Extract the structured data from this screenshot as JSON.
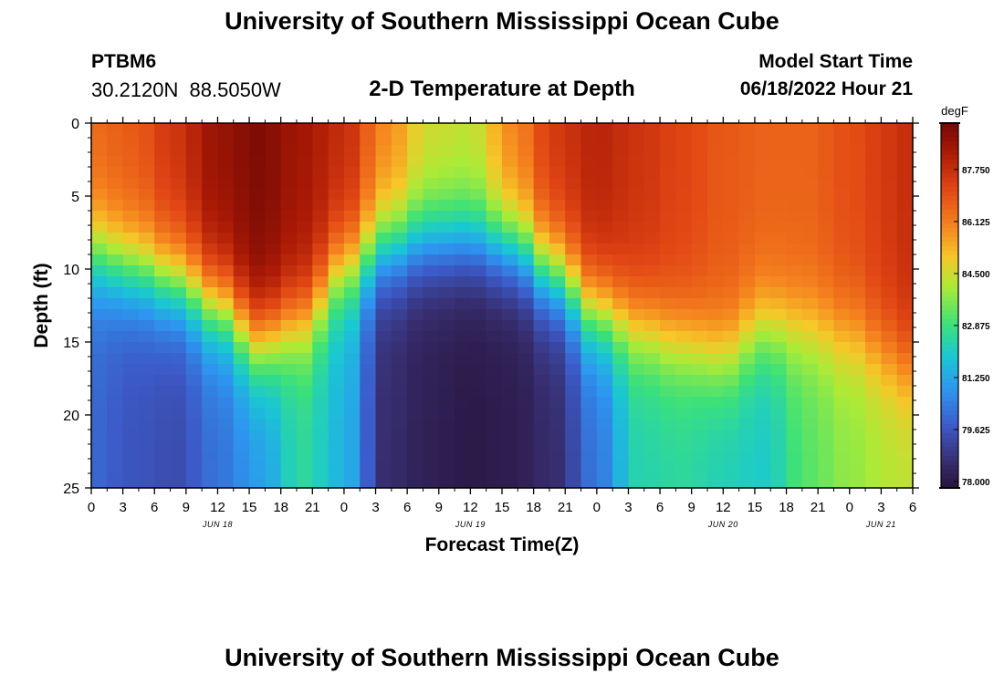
{
  "header": {
    "title": "University of Southern Mississippi Ocean Cube",
    "station": "PTBM6",
    "coordinates": "30.2120N  88.5050W",
    "subtitle": "2-D Temperature at Depth",
    "start_label": "Model Start Time",
    "start_value": "06/18/2022 Hour 21"
  },
  "footer": {
    "title": "University of Southern Mississippi Ocean Cube"
  },
  "chart_data": {
    "type": "heatmap",
    "title": "2-D Temperature at Depth",
    "xlabel": "Forecast Time(Z)",
    "ylabel": "Depth (ft)",
    "x_unit": "hours",
    "xlim": [
      0,
      78
    ],
    "ylim": [
      25,
      0
    ],
    "x_ticks": [
      0,
      3,
      6,
      9,
      12,
      15,
      18,
      21,
      24,
      27,
      30,
      33,
      36,
      39,
      42,
      45,
      48,
      51,
      54,
      57,
      60,
      63,
      66,
      69,
      72,
      75,
      78
    ],
    "x_tick_labels": [
      "0",
      "3",
      "6",
      "9",
      "12",
      "15",
      "18",
      "21",
      "0",
      "3",
      "6",
      "9",
      "12",
      "15",
      "18",
      "21",
      "0",
      "3",
      "6",
      "9",
      "12",
      "15",
      "18",
      "21",
      "0",
      "3",
      "6"
    ],
    "day_labels": [
      {
        "hour": 12,
        "label": "JUN 18"
      },
      {
        "hour": 36,
        "label": "JUN 19"
      },
      {
        "hour": 60,
        "label": "JUN 20"
      },
      {
        "hour": 75,
        "label": "JUN 21"
      }
    ],
    "y_ticks": [
      0,
      5,
      10,
      15,
      20,
      25
    ],
    "y_tick_labels": [
      "0",
      "5",
      "10",
      "15",
      "20",
      "25"
    ],
    "colorbar": {
      "unit": "degF",
      "min": 77.8,
      "max": 89.2,
      "ticks": [
        78.0,
        79.625,
        81.25,
        82.875,
        84.5,
        86.125,
        87.75
      ],
      "tick_labels": [
        "78.000",
        "79.625",
        "81.250",
        "82.875",
        "84.500",
        "86.125",
        "87.750"
      ]
    },
    "grid_spacing": {
      "hours": 1.5,
      "depth_ft": 0.75
    },
    "surface_temp_degF": {
      "hours": [
        0,
        4,
        8,
        12,
        16,
        20,
        24,
        28,
        32,
        36,
        40,
        44,
        48,
        52,
        56,
        60,
        64,
        68,
        72,
        76,
        78
      ],
      "values": [
        86.5,
        86.8,
        87.6,
        88.6,
        89.0,
        88.4,
        87.8,
        86.0,
        84.6,
        84.4,
        86.0,
        87.5,
        88.0,
        87.6,
        87.2,
        86.8,
        86.6,
        86.6,
        87.0,
        87.5,
        87.8
      ]
    },
    "bottom_temp_degF": {
      "hours": [
        0,
        4,
        8,
        12,
        16,
        20,
        24,
        28,
        32,
        36,
        40,
        44,
        48,
        52,
        56,
        60,
        64,
        68,
        72,
        76,
        78
      ],
      "values": [
        80.0,
        79.6,
        79.4,
        80.2,
        81.0,
        82.5,
        81.5,
        78.6,
        78.2,
        78.0,
        78.1,
        78.6,
        80.3,
        82.3,
        82.5,
        82.2,
        82.0,
        83.2,
        83.8,
        84.2,
        84.3
      ]
    },
    "thermocline_depth_ft": {
      "hours": [
        0,
        4,
        8,
        12,
        16,
        20,
        24,
        28,
        32,
        36,
        40,
        44,
        48,
        52,
        56,
        60,
        64,
        68,
        72,
        76,
        78
      ],
      "values": [
        9.0,
        10.0,
        11.0,
        12.5,
        15.0,
        13.5,
        10.0,
        8.5,
        8.0,
        8.0,
        8.5,
        10.5,
        13.0,
        14.0,
        15.0,
        16.0,
        14.0,
        14.0,
        14.5,
        16.0,
        17.0
      ]
    }
  }
}
